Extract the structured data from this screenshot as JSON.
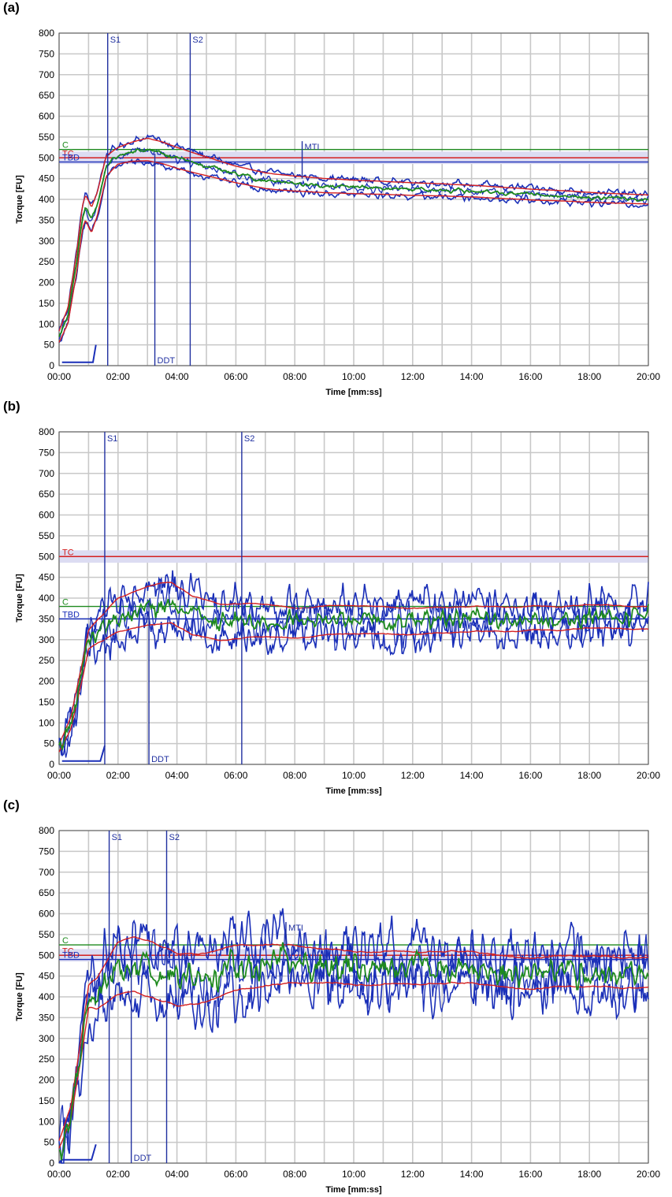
{
  "figure": {
    "panel_labels": [
      "(a)",
      "(b)",
      "(c)"
    ]
  },
  "colors": {
    "grid": "#c8c8c8",
    "blue": "#1a2fb8",
    "green": "#1e8a1e",
    "red": "#d42020",
    "band": "#dcdcf2",
    "markerLine": "#2030a0"
  },
  "chart_data": [
    {
      "type": "line",
      "panel": "(a)",
      "xlabel": "Time [mm:ss]",
      "ylabel": "Torque [FU]",
      "xlim": [
        0,
        20
      ],
      "ylim": [
        0,
        800
      ],
      "xticks": [
        "00:00",
        "02:00",
        "04:00",
        "06:00",
        "08:00",
        "10:00",
        "12:00",
        "14:00",
        "16:00",
        "18:00",
        "20:00"
      ],
      "yticks": [
        0,
        50,
        100,
        150,
        200,
        250,
        300,
        350,
        400,
        450,
        500,
        550,
        600,
        650,
        700,
        750,
        800
      ],
      "noise": 6,
      "hlines": [
        {
          "label": "C",
          "y": 520,
          "color": "green"
        },
        {
          "label": "TC",
          "y": 500,
          "color": "red",
          "band": [
            485,
            515
          ]
        },
        {
          "label": "TBD",
          "y": 490,
          "color": "blue"
        }
      ],
      "vmarkers": [
        {
          "label": "S1",
          "x": 1.65,
          "full": true
        },
        {
          "label": "S2",
          "x": 4.45,
          "full": true
        },
        {
          "label": "DDT",
          "x": 3.25,
          "y_top": 510,
          "label_pos": "bottom"
        },
        {
          "label": "MTI",
          "x": 8.25,
          "y_top": 540,
          "y_bottom": 450,
          "label_pos": "top"
        }
      ],
      "start_marker": [
        [
          0.1,
          8
        ],
        [
          1.15,
          8
        ],
        [
          1.25,
          50
        ]
      ],
      "center_curve": [
        [
          0.0,
          70
        ],
        [
          0.3,
          120
        ],
        [
          0.6,
          250
        ],
        [
          0.8,
          360
        ],
        [
          0.9,
          380
        ],
        [
          1.1,
          350
        ],
        [
          1.3,
          390
        ],
        [
          1.6,
          480
        ],
        [
          2.0,
          505
        ],
        [
          2.5,
          515
        ],
        [
          3.0,
          520
        ],
        [
          3.5,
          512
        ],
        [
          4.0,
          500
        ],
        [
          5.0,
          480
        ],
        [
          6.0,
          460
        ],
        [
          7.0,
          445
        ],
        [
          8.0,
          438
        ],
        [
          9.0,
          433
        ],
        [
          10.0,
          430
        ],
        [
          12.0,
          425
        ],
        [
          14.0,
          420
        ],
        [
          16.0,
          412
        ],
        [
          18.0,
          405
        ],
        [
          20.0,
          400
        ]
      ],
      "spread_curve": [
        [
          0.0,
          15
        ],
        [
          1.0,
          35
        ],
        [
          2.0,
          22
        ],
        [
          3.0,
          30
        ],
        [
          4.0,
          28
        ],
        [
          6.0,
          22
        ],
        [
          10.0,
          18
        ],
        [
          20.0,
          12
        ]
      ]
    },
    {
      "type": "line",
      "panel": "(b)",
      "xlabel": "Time [mm:ss]",
      "ylabel": "Torque [FU]",
      "xlim": [
        0,
        20
      ],
      "ylim": [
        0,
        800
      ],
      "xticks": [
        "00:00",
        "02:00",
        "04:00",
        "06:00",
        "08:00",
        "10:00",
        "12:00",
        "14:00",
        "16:00",
        "18:00",
        "20:00"
      ],
      "yticks": [
        0,
        50,
        100,
        150,
        200,
        250,
        300,
        350,
        400,
        450,
        500,
        550,
        600,
        650,
        700,
        750,
        800
      ],
      "noise": 30,
      "hlines": [
        {
          "label": "TC",
          "y": 500,
          "color": "red",
          "band": [
            485,
            515
          ]
        },
        {
          "label": "C",
          "y": 380,
          "color": "green"
        },
        {
          "label": "TBD",
          "y": 350,
          "color": "blue"
        }
      ],
      "vmarkers": [
        {
          "label": "S1",
          "x": 1.55,
          "full": true
        },
        {
          "label": "S2",
          "x": 6.2,
          "full": true
        },
        {
          "label": "DDT",
          "x": 3.05,
          "y_top": 390,
          "label_pos": "bottom"
        },
        {
          "label": "MTI",
          "x": 8.0,
          "y_top": 385,
          "y_bottom": 340,
          "label_pos": "top"
        }
      ],
      "start_marker": [
        [
          0.1,
          8
        ],
        [
          1.4,
          8
        ],
        [
          1.55,
          45
        ]
      ],
      "center_curve": [
        [
          0.0,
          40
        ],
        [
          0.4,
          100
        ],
        [
          0.8,
          230
        ],
        [
          1.0,
          300
        ],
        [
          1.3,
          320
        ],
        [
          2.0,
          360
        ],
        [
          3.0,
          380
        ],
        [
          3.8,
          390
        ],
        [
          4.5,
          360
        ],
        [
          5.5,
          340
        ],
        [
          6.5,
          345
        ],
        [
          8.0,
          340
        ],
        [
          10.0,
          350
        ],
        [
          12.0,
          345
        ],
        [
          14.0,
          350
        ],
        [
          16.0,
          352
        ],
        [
          18.0,
          355
        ],
        [
          20.0,
          355
        ]
      ],
      "spread_curve": [
        [
          0.0,
          10
        ],
        [
          1.0,
          25
        ],
        [
          2.0,
          45
        ],
        [
          3.5,
          55
        ],
        [
          5.0,
          50
        ],
        [
          8.0,
          40
        ],
        [
          12.0,
          35
        ],
        [
          16.0,
          32
        ],
        [
          20.0,
          30
        ]
      ]
    },
    {
      "type": "line",
      "panel": "(c)",
      "xlabel": "Time [mm:ss]",
      "ylabel": "Torque [FU]",
      "xlim": [
        0,
        20
      ],
      "ylim": [
        0,
        800
      ],
      "xticks": [
        "00:00",
        "02:00",
        "04:00",
        "06:00",
        "08:00",
        "10:00",
        "12:00",
        "14:00",
        "16:00",
        "18:00",
        "20:00"
      ],
      "yticks": [
        0,
        50,
        100,
        150,
        200,
        250,
        300,
        350,
        400,
        450,
        500,
        550,
        600,
        650,
        700,
        750,
        800
      ],
      "noise": 45,
      "hlines": [
        {
          "label": "C",
          "y": 525,
          "color": "green"
        },
        {
          "label": "TC",
          "y": 500,
          "color": "red",
          "band": [
            485,
            515
          ]
        },
        {
          "label": "TBD",
          "y": 490,
          "color": "blue"
        }
      ],
      "vmarkers": [
        {
          "label": "S1",
          "x": 1.7,
          "full": true
        },
        {
          "label": "S2",
          "x": 3.65,
          "full": true
        },
        {
          "label": "DDT",
          "x": 2.45,
          "y_top": 500,
          "label_pos": "bottom"
        },
        {
          "label": "MTI",
          "x": 7.7,
          "y_top": 580,
          "y_bottom": 520,
          "label_pos": "top"
        }
      ],
      "start_marker": [
        [
          0.1,
          8
        ],
        [
          1.1,
          8
        ],
        [
          1.25,
          45
        ]
      ],
      "center_curve": [
        [
          0.0,
          45
        ],
        [
          0.4,
          120
        ],
        [
          0.8,
          300
        ],
        [
          1.0,
          400
        ],
        [
          1.3,
          410
        ],
        [
          2.0,
          470
        ],
        [
          2.5,
          480
        ],
        [
          3.0,
          470
        ],
        [
          4.0,
          440
        ],
        [
          5.0,
          450
        ],
        [
          6.0,
          470
        ],
        [
          7.0,
          480
        ],
        [
          8.0,
          480
        ],
        [
          10.0,
          470
        ],
        [
          12.0,
          470
        ],
        [
          14.0,
          468
        ],
        [
          16.0,
          460
        ],
        [
          18.0,
          462
        ],
        [
          20.0,
          460
        ]
      ],
      "spread_curve": [
        [
          0.0,
          10
        ],
        [
          1.0,
          30
        ],
        [
          2.0,
          70
        ],
        [
          3.0,
          75
        ],
        [
          5.0,
          65
        ],
        [
          7.0,
          55
        ],
        [
          9.0,
          45
        ],
        [
          14.0,
          42
        ],
        [
          20.0,
          40
        ]
      ]
    }
  ]
}
